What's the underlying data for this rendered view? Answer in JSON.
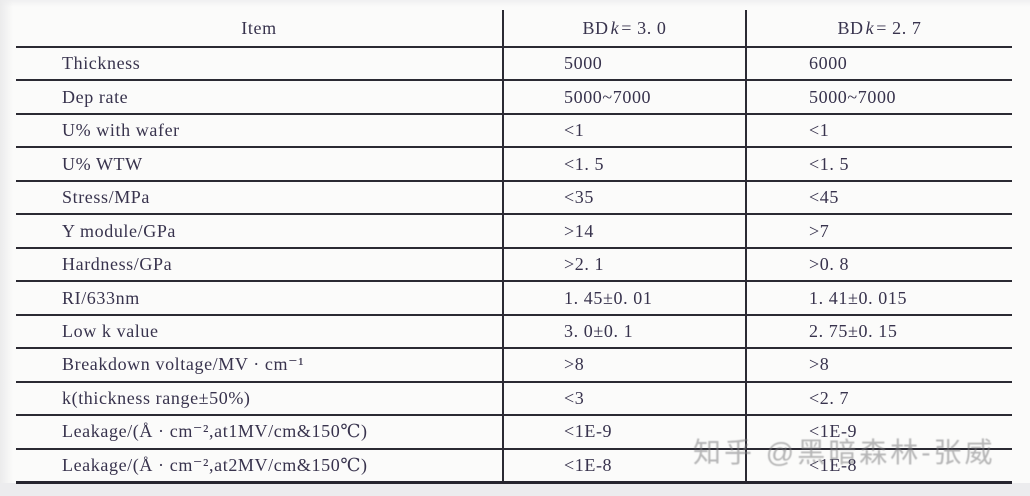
{
  "watermark": {
    "text": "知乎 @黑暗森林-张威"
  },
  "table": {
    "header": {
      "item": "Item",
      "col2": {
        "pre": "BD ",
        "k": "k",
        "post": "= 3. 0"
      },
      "col3": {
        "pre": "BD ",
        "k": "k",
        "post": "= 2. 7"
      }
    },
    "rows": [
      {
        "item": "Thickness",
        "bd30": "5000",
        "bd27": "6000"
      },
      {
        "item": "Dep rate",
        "bd30": "5000~7000",
        "bd27": "5000~7000"
      },
      {
        "item": "U% with wafer",
        "bd30": "<1",
        "bd27": "<1"
      },
      {
        "item": "U% WTW",
        "bd30": "<1. 5",
        "bd27": "<1. 5"
      },
      {
        "item": "Stress/MPa",
        "bd30": "<35",
        "bd27": "<45"
      },
      {
        "item": "Y module/GPa",
        "bd30": ">14",
        "bd27": ">7"
      },
      {
        "item": "Hardness/GPa",
        "bd30": ">2. 1",
        "bd27": ">0. 8"
      },
      {
        "item": "RI/633nm",
        "bd30": "1. 45±0. 01",
        "bd27": "1. 41±0. 015"
      },
      {
        "item": "Low k value",
        "bd30": "3. 0±0. 1",
        "bd27": "2. 75±0. 15"
      },
      {
        "item": "Breakdown voltage/MV · cm⁻¹",
        "bd30": ">8",
        "bd27": ">8"
      },
      {
        "item": "k(thickness range±50%)",
        "bd30": "<3",
        "bd27": "<2. 7"
      },
      {
        "item": "Leakage/(Å · cm⁻²,at1MV/cm&150℃)",
        "bd30": "<1E-9",
        "bd27": "<1E-9"
      },
      {
        "item": "Leakage/(Å · cm⁻²,at2MV/cm&150℃)",
        "bd30": "<1E-8",
        "bd27": "<1E-8"
      }
    ]
  },
  "colors": {
    "ink": "#38334d",
    "rule_line": "#2b2a33",
    "paper": "#fbfbfa",
    "watermark_gray": "#7d7d80"
  }
}
